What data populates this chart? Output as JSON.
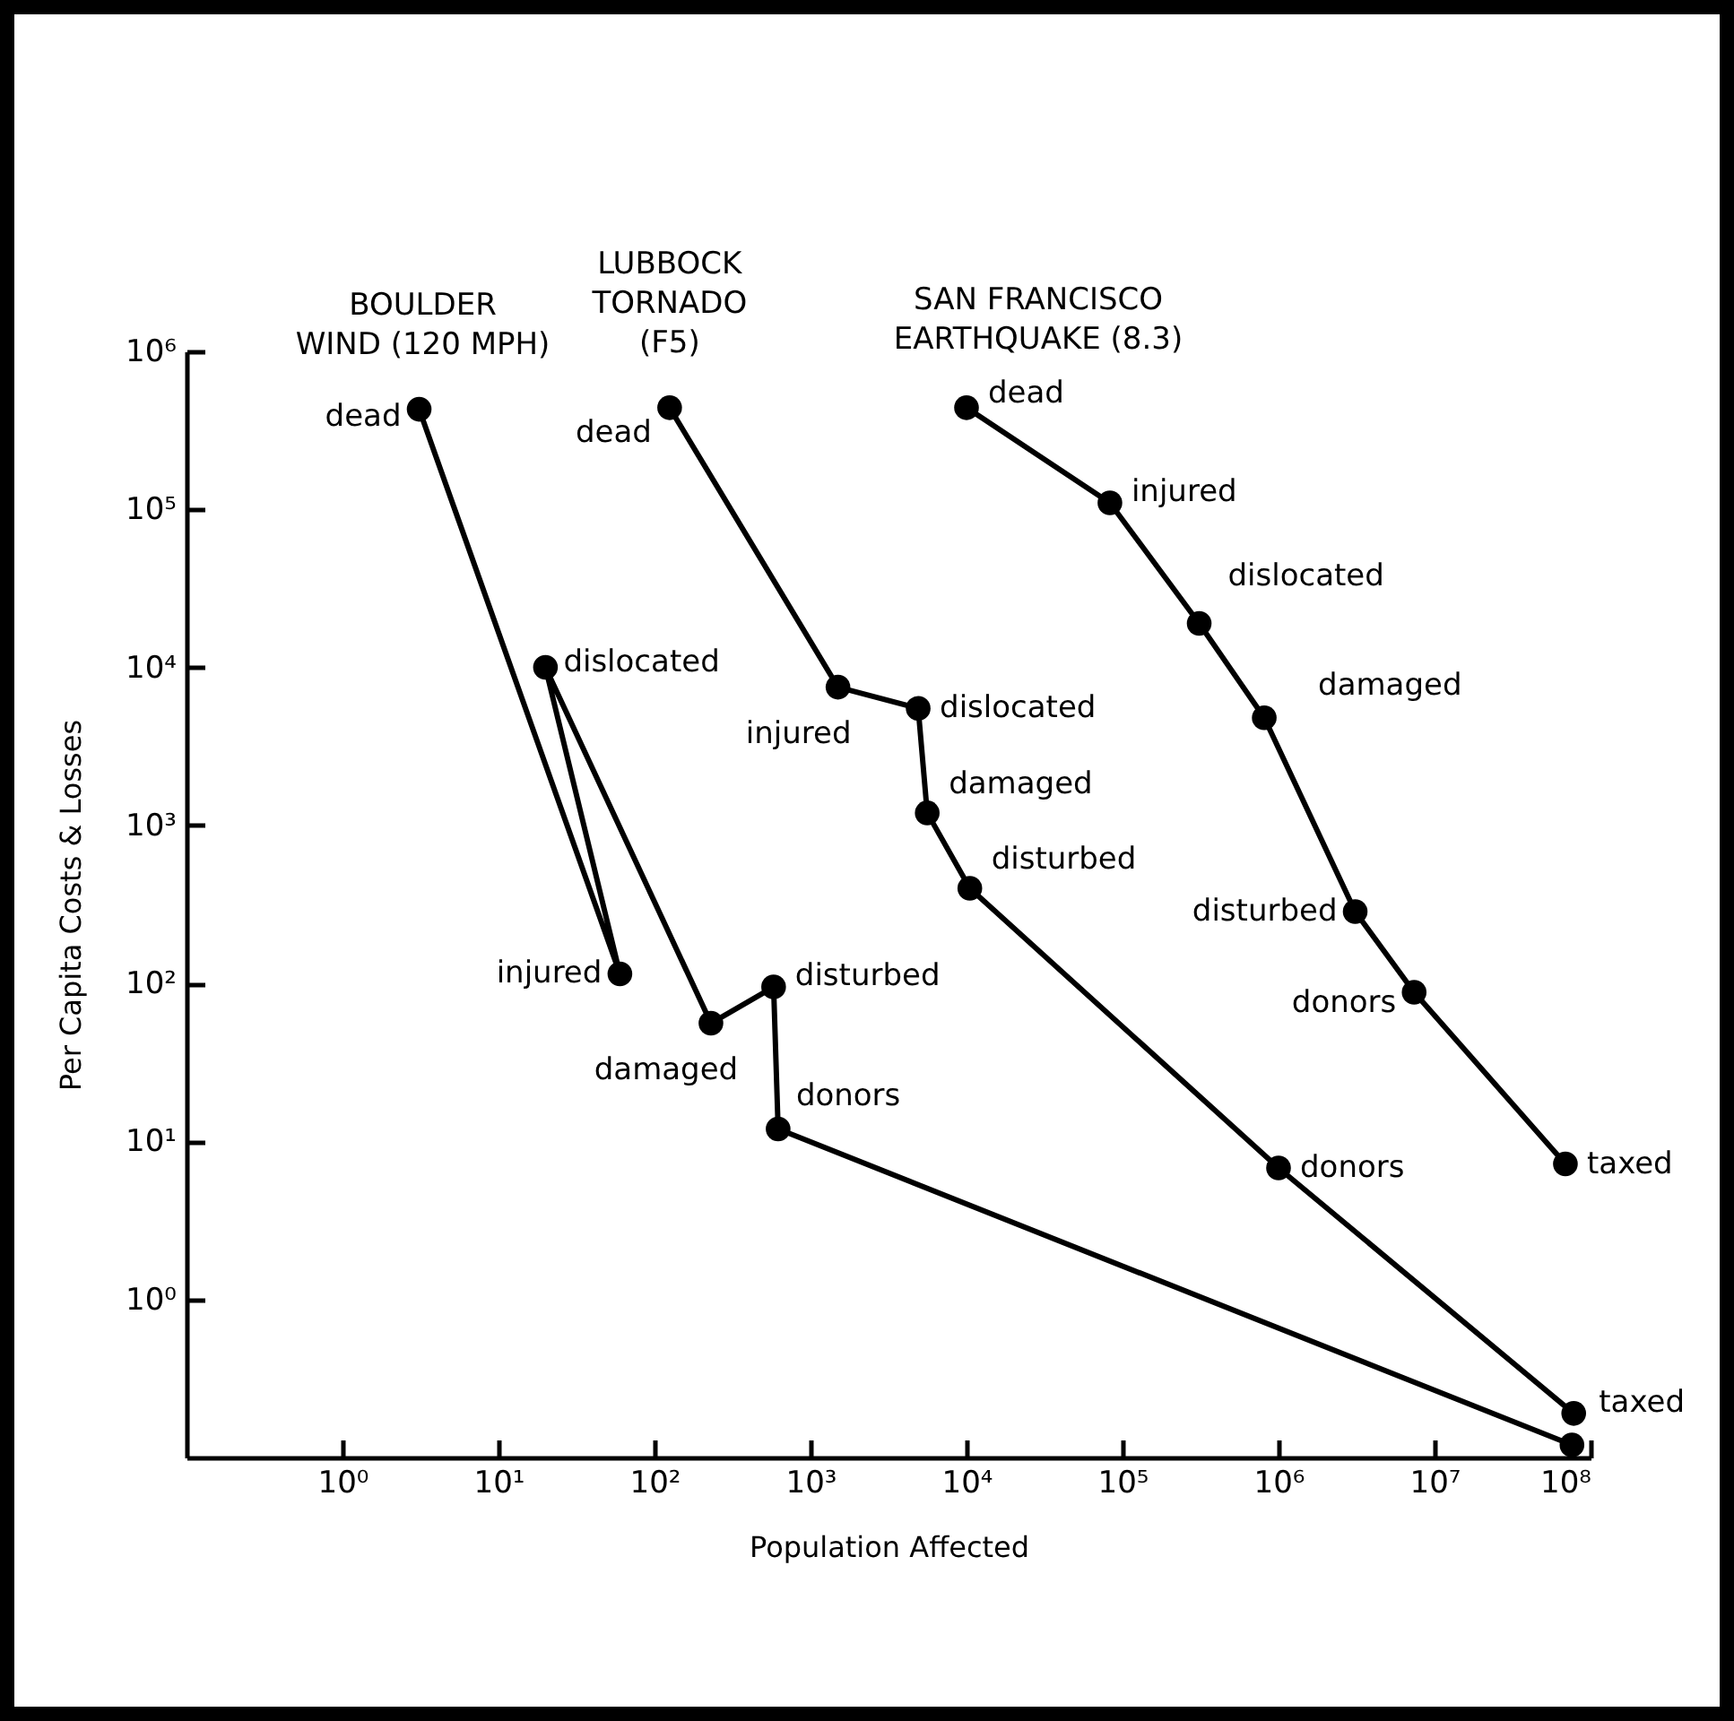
{
  "chart_data": {
    "type": "line",
    "xlabel": "Population Affected",
    "ylabel": "Per Capita Costs & Losses",
    "log": "xy",
    "grid": false,
    "marker": "circle",
    "line_style": "solid",
    "xlim": [
      0.1,
      100000000
    ],
    "ylim": [
      0.1,
      1000000
    ],
    "xticks": [
      {
        "value": 1,
        "label": "10⁰"
      },
      {
        "value": 10,
        "label": "10¹"
      },
      {
        "value": 100,
        "label": "10²"
      },
      {
        "value": 1000,
        "label": "10³"
      },
      {
        "value": 10000,
        "label": "10⁴"
      },
      {
        "value": 100000,
        "label": "10⁵"
      },
      {
        "value": 1000000,
        "label": "10⁶"
      },
      {
        "value": 10000000,
        "label": "10⁷"
      },
      {
        "value": 100000000,
        "label": "10⁸"
      }
    ],
    "yticks": [
      {
        "value": 1,
        "label": "10⁰"
      },
      {
        "value": 10,
        "label": "10¹"
      },
      {
        "value": 100,
        "label": "10²"
      },
      {
        "value": 1000,
        "label": "10³"
      },
      {
        "value": 10000,
        "label": "10⁴"
      },
      {
        "value": 100000,
        "label": "10⁵"
      },
      {
        "value": 1000000,
        "label": "10⁶"
      }
    ],
    "series": [
      {
        "name": "BOULDER\nWIND (120 MPH)",
        "color": "#000000",
        "x": [
          3.1,
          60,
          20,
          230,
          580,
          620,
          76000000
        ],
        "values": [
          430000,
          115,
          10000,
          56,
          95,
          12,
          0.12
        ]
      },
      {
        "name": "LUBBOCK\nTORNADO\n(F5)",
        "color": "#000000",
        "x": [
          125,
          1500,
          4900,
          5600,
          10500,
          1000000,
          78000000
        ],
        "values": [
          440000,
          7500,
          5500,
          1200,
          400,
          6.8,
          0.19
        ]
      },
      {
        "name": "SAN FRANCISCO\nEARTHQUAKE (8.3)",
        "color": "#000000",
        "x": [
          10000,
          83000,
          310000,
          810000,
          3100000,
          7400000,
          69000000
        ],
        "values": [
          440000,
          110000,
          19000,
          4800,
          285,
          88,
          7.2
        ]
      }
    ],
    "annotations": [
      {
        "text": "dead",
        "x": 3.1,
        "y": 430000
      },
      {
        "text": "injured",
        "x": 60,
        "y": 115
      },
      {
        "text": "dislocated",
        "x": 20,
        "y": 10000
      },
      {
        "text": "damaged",
        "x": 230,
        "y": 56
      },
      {
        "text": "disturbed",
        "x": 580,
        "y": 95
      },
      {
        "text": "donors",
        "x": 620,
        "y": 12
      },
      {
        "text": "dead",
        "x": 125,
        "y": 440000
      },
      {
        "text": "injured",
        "x": 1500,
        "y": 7500
      },
      {
        "text": "dislocated",
        "x": 4900,
        "y": 5500
      },
      {
        "text": "damaged",
        "x": 5600,
        "y": 1200
      },
      {
        "text": "disturbed",
        "x": 10500,
        "y": 400
      },
      {
        "text": "donors",
        "x": 1000000,
        "y": 6.8
      },
      {
        "text": "taxed",
        "x": 78000000,
        "y": 0.19
      },
      {
        "text": "dead",
        "x": 10000,
        "y": 440000
      },
      {
        "text": "injured",
        "x": 83000,
        "y": 110000
      },
      {
        "text": "dislocated",
        "x": 310000,
        "y": 19000
      },
      {
        "text": "damaged",
        "x": 810000,
        "y": 4800
      },
      {
        "text": "disturbed",
        "x": 3100000,
        "y": 285
      },
      {
        "text": "donors",
        "x": 7400000,
        "y": 88
      },
      {
        "text": "taxed",
        "x": 69000000,
        "y": 7.2
      }
    ]
  }
}
